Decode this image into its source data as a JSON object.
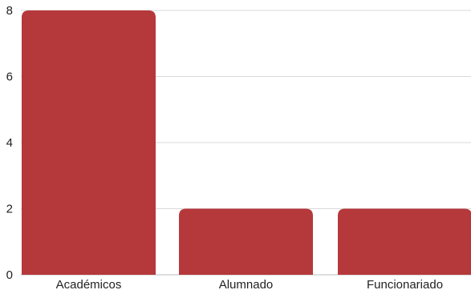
{
  "chart_data": {
    "type": "bar",
    "categories": [
      "Académicos",
      "Alumnado",
      "Funcionariado"
    ],
    "values": [
      8,
      2,
      2
    ],
    "ylim": [
      0,
      8
    ],
    "yticks": [
      0,
      2,
      4,
      6,
      8
    ],
    "grid": true,
    "legend": "none",
    "title": "",
    "xlabel": "",
    "ylabel": "",
    "colors": {
      "bar": "#b5383b",
      "grid": "#d9d9d9",
      "text": "#222222"
    }
  }
}
